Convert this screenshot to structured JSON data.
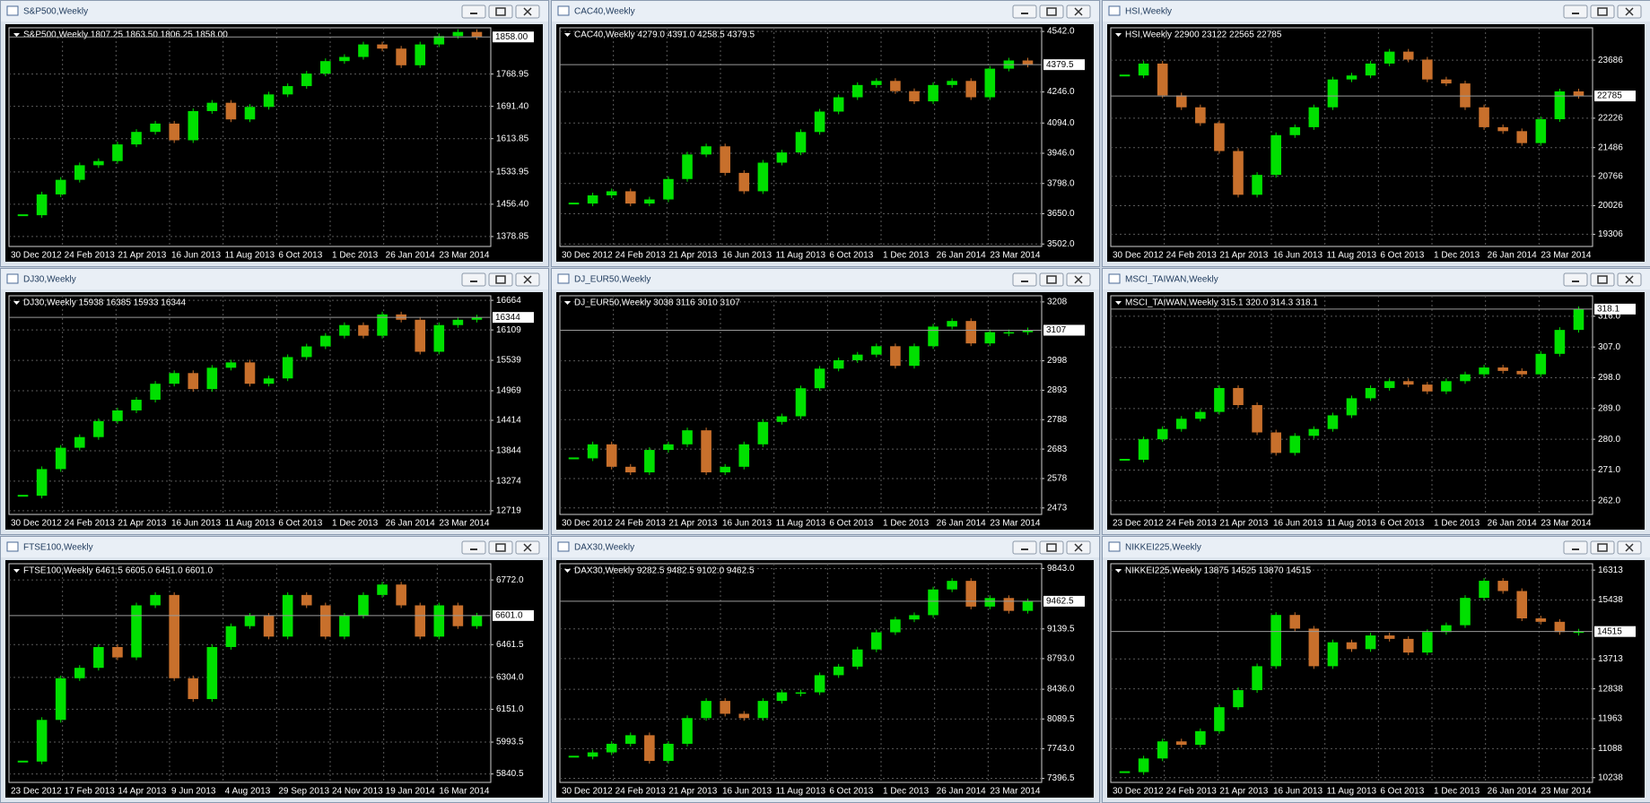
{
  "chart_data": [
    {
      "type": "candlestick",
      "title": "S&P500,Weekly",
      "subtitle": "S&P500,Weekly  1807.25 1863.50 1806.25 1858.00",
      "x_labels": [
        "30 Dec 2012",
        "24 Feb 2013",
        "21 Apr 2013",
        "16 Jun 2013",
        "11 Aug 2013",
        "6 Oct 2013",
        "1 Dec 2013",
        "26 Jan 2014",
        "23 Mar 2014"
      ],
      "values": [
        1430,
        1480,
        1515,
        1550,
        1560,
        1600,
        1630,
        1650,
        1610,
        1680,
        1700,
        1660,
        1690,
        1720,
        1740,
        1770,
        1800,
        1810,
        1840,
        1830,
        1790,
        1840,
        1860,
        1870,
        1858
      ],
      "ylim": [
        1355,
        1880
      ],
      "yticks": [
        {
          "value": 1768.95,
          "label": "1768.95"
        },
        {
          "value": 1691.4,
          "label": "1691.40"
        },
        {
          "value": 1613.85,
          "label": "1613.85"
        },
        {
          "value": 1533.95,
          "label": "1533.95"
        },
        {
          "value": 1456.4,
          "label": "1456.40"
        },
        {
          "value": 1378.85,
          "label": "1378.85"
        }
      ],
      "last_price": {
        "value": 1858,
        "label": "1858.00"
      },
      "up_color": "#00e000",
      "down_color": "#c8702c",
      "grid": true
    },
    {
      "type": "candlestick",
      "title": "CAC40,Weekly",
      "subtitle": "CAC40,Weekly  4279.0 4391.0 4258.5 4379.5",
      "x_labels": [
        "30 Dec 2012",
        "24 Feb 2013",
        "21 Apr 2013",
        "16 Jun 2013",
        "11 Aug 2013",
        "6 Oct 2013",
        "1 Dec 2013",
        "26 Jan 2014",
        "23 Mar 2014"
      ],
      "values": [
        3700,
        3740,
        3760,
        3700,
        3720,
        3820,
        3940,
        3980,
        3850,
        3760,
        3900,
        3950,
        4050,
        4150,
        4220,
        4280,
        4300,
        4250,
        4200,
        4280,
        4300,
        4220,
        4360,
        4400,
        4379.5
      ],
      "ylim": [
        3490,
        4560
      ],
      "yticks": [
        {
          "value": 4542,
          "label": "4542.0"
        },
        {
          "value": 4246,
          "label": "4246.0"
        },
        {
          "value": 4094,
          "label": "4094.0"
        },
        {
          "value": 3946,
          "label": "3946.0"
        },
        {
          "value": 3798,
          "label": "3798.0"
        },
        {
          "value": 3650,
          "label": "3650.0"
        },
        {
          "value": 3502,
          "label": "3502.0"
        }
      ],
      "last_price": {
        "value": 4379.5,
        "label": "4379.5"
      },
      "up_color": "#00e000",
      "down_color": "#c8702c",
      "grid": true
    },
    {
      "type": "candlestick",
      "title": "HSI,Weekly",
      "subtitle": "HSI,Weekly  22900 23122 22565 22785",
      "x_labels": [
        "30 Dec 2012",
        "24 Feb 2013",
        "21 Apr 2013",
        "16 Jun 2013",
        "11 Aug 2013",
        "6 Oct 2013",
        "1 Dec 2013",
        "26 Jan 2014",
        "23 Mar 2014"
      ],
      "values": [
        23300,
        23600,
        22800,
        22500,
        22100,
        21400,
        20300,
        20800,
        21800,
        22000,
        22500,
        23200,
        23300,
        23600,
        23900,
        23700,
        23200,
        23100,
        22500,
        22000,
        21900,
        21600,
        22200,
        22900,
        22785
      ],
      "ylim": [
        19000,
        24500
      ],
      "yticks": [
        {
          "value": 23686,
          "label": "23686"
        },
        {
          "value": 22226,
          "label": "22226"
        },
        {
          "value": 21486,
          "label": "21486"
        },
        {
          "value": 20766,
          "label": "20766"
        },
        {
          "value": 20026,
          "label": "20026"
        },
        {
          "value": 19306,
          "label": "19306"
        }
      ],
      "last_price": {
        "value": 22785,
        "label": "22785"
      },
      "up_color": "#00e000",
      "down_color": "#c8702c",
      "grid": true
    },
    {
      "type": "candlestick",
      "title": "DJ30,Weekly",
      "subtitle": "DJ30,Weekly  15938 16385 15933 16344",
      "x_labels": [
        "30 Dec 2012",
        "24 Feb 2013",
        "21 Apr 2013",
        "16 Jun 2013",
        "11 Aug 2013",
        "6 Oct 2013",
        "1 Dec 2013",
        "26 Jan 2014",
        "23 Mar 2014"
      ],
      "values": [
        13000,
        13500,
        13900,
        14100,
        14400,
        14600,
        14800,
        15100,
        15300,
        15000,
        15400,
        15500,
        15100,
        15200,
        15600,
        15800,
        16000,
        16200,
        16000,
        16400,
        16300,
        15700,
        16200,
        16300,
        16344
      ],
      "ylim": [
        12650,
        16750
      ],
      "yticks": [
        {
          "value": 16664,
          "label": "16664"
        },
        {
          "value": 16109,
          "label": "16109"
        },
        {
          "value": 15539,
          "label": "15539"
        },
        {
          "value": 14969,
          "label": "14969"
        },
        {
          "value": 14414,
          "label": "14414"
        },
        {
          "value": 13844,
          "label": "13844"
        },
        {
          "value": 13274,
          "label": "13274"
        },
        {
          "value": 12719,
          "label": "12719"
        }
      ],
      "last_price": {
        "value": 16344,
        "label": "16344"
      },
      "up_color": "#00e000",
      "down_color": "#c8702c",
      "grid": true
    },
    {
      "type": "candlestick",
      "title": "DJ_EUR50,Weekly",
      "subtitle": "DJ_EUR50,Weekly  3038 3116 3010 3107",
      "x_labels": [
        "30 Dec 2012",
        "24 Feb 2013",
        "21 Apr 2013",
        "16 Jun 2013",
        "11 Aug 2013",
        "6 Oct 2013",
        "1 Dec 2013",
        "26 Jan 2014",
        "23 Mar 2014"
      ],
      "values": [
        2650,
        2700,
        2620,
        2600,
        2680,
        2700,
        2750,
        2600,
        2620,
        2700,
        2780,
        2800,
        2900,
        2970,
        3000,
        3020,
        3050,
        2980,
        3050,
        3120,
        3140,
        3060,
        3100,
        3100,
        3107
      ],
      "ylim": [
        2450,
        3230
      ],
      "yticks": [
        {
          "value": 3208,
          "label": "3208"
        },
        {
          "value": 2998,
          "label": "2998"
        },
        {
          "value": 2893,
          "label": "2893"
        },
        {
          "value": 2788,
          "label": "2788"
        },
        {
          "value": 2683,
          "label": "2683"
        },
        {
          "value": 2578,
          "label": "2578"
        },
        {
          "value": 2473,
          "label": "2473"
        }
      ],
      "last_price": {
        "value": 3107,
        "label": "3107"
      },
      "up_color": "#00e000",
      "down_color": "#c8702c",
      "grid": true
    },
    {
      "type": "candlestick",
      "title": "MSCI_TAIWAN,Weekly",
      "subtitle": "MSCI_TAIWAN,Weekly  315.1 320.0 314.3 318.1",
      "x_labels": [
        "23 Dec 2012",
        "24 Feb 2013",
        "21 Apr 2013",
        "16 Jun 2013",
        "11 Aug 2013",
        "6 Oct 2013",
        "1 Dec 2013",
        "26 Jan 2014",
        "23 Mar 2014"
      ],
      "values": [
        274,
        280,
        283,
        286,
        288,
        295,
        290,
        282,
        276,
        281,
        283,
        287,
        292,
        295,
        297,
        296,
        294,
        297,
        299,
        301,
        300,
        299,
        305,
        312,
        318.1
      ],
      "ylim": [
        258,
        322
      ],
      "yticks": [
        {
          "value": 316,
          "label": "316.0"
        },
        {
          "value": 307,
          "label": "307.0"
        },
        {
          "value": 298,
          "label": "298.0"
        },
        {
          "value": 289,
          "label": "289.0"
        },
        {
          "value": 280,
          "label": "280.0"
        },
        {
          "value": 271,
          "label": "271.0"
        },
        {
          "value": 262,
          "label": "262.0"
        }
      ],
      "last_price": {
        "value": 318.1,
        "label": "318.1"
      },
      "up_color": "#00e000",
      "down_color": "#c8702c",
      "grid": true
    },
    {
      "type": "candlestick",
      "title": "FTSE100,Weekly",
      "subtitle": "FTSE100,Weekly  6461.5 6605.0 6451.0 6601.0",
      "x_labels": [
        "23 Dec 2012",
        "17 Feb 2013",
        "14 Apr 2013",
        "9 Jun 2013",
        "4 Aug 2013",
        "29 Sep 2013",
        "24 Nov 2013",
        "19 Jan 2014",
        "16 Mar 2014"
      ],
      "values": [
        5900,
        6100,
        6300,
        6350,
        6450,
        6400,
        6650,
        6700,
        6300,
        6200,
        6450,
        6550,
        6600,
        6500,
        6700,
        6650,
        6500,
        6600,
        6700,
        6750,
        6650,
        6500,
        6650,
        6550,
        6601
      ],
      "ylim": [
        5800,
        6850
      ],
      "yticks": [
        {
          "value": 6772,
          "label": "6772.0"
        },
        {
          "value": 6461.5,
          "label": "6461.5"
        },
        {
          "value": 6304,
          "label": "6304.0"
        },
        {
          "value": 6151,
          "label": "6151.0"
        },
        {
          "value": 5993.5,
          "label": "5993.5"
        },
        {
          "value": 5840.5,
          "label": "5840.5"
        }
      ],
      "last_price": {
        "value": 6601,
        "label": "6601.0"
      },
      "up_color": "#00e000",
      "down_color": "#c8702c",
      "grid": true
    },
    {
      "type": "candlestick",
      "title": "DAX30,Weekly",
      "subtitle": "DAX30,Weekly  9282.5 9482.5 9102.0 9462.5",
      "x_labels": [
        "30 Dec 2012",
        "24 Feb 2013",
        "21 Apr 2013",
        "16 Jun 2013",
        "11 Aug 2013",
        "6 Oct 2013",
        "1 Dec 2013",
        "26 Jan 2014",
        "23 Mar 2014"
      ],
      "values": [
        7650,
        7700,
        7800,
        7900,
        7600,
        7800,
        8100,
        8300,
        8150,
        8100,
        8300,
        8400,
        8400,
        8600,
        8700,
        8900,
        9100,
        9250,
        9300,
        9600,
        9700,
        9400,
        9500,
        9350,
        9462.5
      ],
      "ylim": [
        7350,
        9900
      ],
      "yticks": [
        {
          "value": 9843,
          "label": "9843.0"
        },
        {
          "value": 9139.5,
          "label": "9139.5"
        },
        {
          "value": 8793,
          "label": "8793.0"
        },
        {
          "value": 8436,
          "label": "8436.0"
        },
        {
          "value": 8089.5,
          "label": "8089.5"
        },
        {
          "value": 7743,
          "label": "7743.0"
        },
        {
          "value": 7396.5,
          "label": "7396.5"
        }
      ],
      "last_price": {
        "value": 9462.5,
        "label": "9462.5"
      },
      "up_color": "#00e000",
      "down_color": "#c8702c",
      "grid": true
    },
    {
      "type": "candlestick",
      "title": "NIKKEI225,Weekly",
      "subtitle": "NIKKEI225,Weekly  13875 14525 13870 14515",
      "x_labels": [
        "30 Dec 2012",
        "24 Feb 2013",
        "21 Apr 2013",
        "16 Jun 2013",
        "11 Aug 2013",
        "6 Oct 2013",
        "1 Dec 2013",
        "26 Jan 2014",
        "23 Mar 2014"
      ],
      "values": [
        10400,
        10800,
        11300,
        11200,
        11600,
        12300,
        12800,
        13500,
        15000,
        14600,
        13500,
        14200,
        14000,
        14400,
        14300,
        13900,
        14500,
        14700,
        15500,
        16000,
        15700,
        14900,
        14800,
        14500,
        14515
      ],
      "ylim": [
        10100,
        16500
      ],
      "yticks": [
        {
          "value": 16313,
          "label": "16313"
        },
        {
          "value": 15438,
          "label": "15438"
        },
        {
          "value": 13713,
          "label": "13713"
        },
        {
          "value": 12838,
          "label": "12838"
        },
        {
          "value": 11963,
          "label": "11963"
        },
        {
          "value": 11088,
          "label": "11088"
        },
        {
          "value": 10238,
          "label": "10238"
        }
      ],
      "last_price": {
        "value": 14515,
        "label": "14515"
      },
      "up_color": "#00e000",
      "down_color": "#c8702c",
      "grid": true
    }
  ]
}
